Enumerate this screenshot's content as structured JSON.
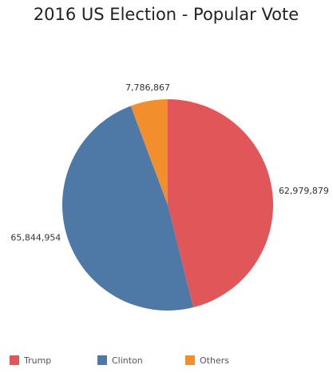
{
  "chart_data": {
    "type": "pie",
    "title": "2016 US Election - Popular Vote",
    "categories": [
      "Trump",
      "Clinton",
      "Others"
    ],
    "values": [
      62979879,
      65844954,
      7786867
    ],
    "value_labels": [
      "62,979,879",
      "65,844,954",
      "7,786,867"
    ],
    "colors": [
      "#e15759",
      "#4e79a7",
      "#f28e2b"
    ]
  }
}
